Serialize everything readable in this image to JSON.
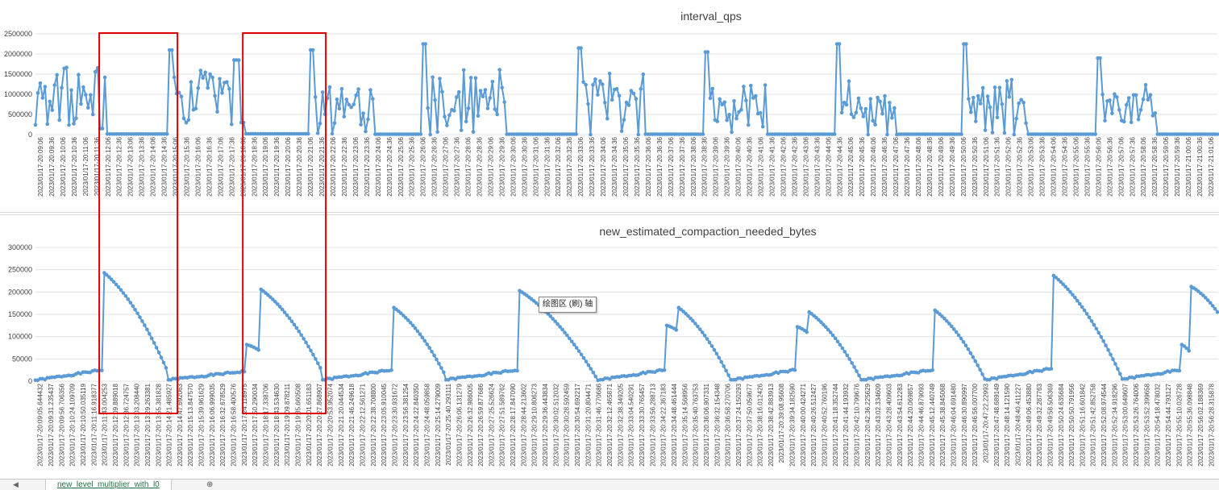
{
  "sheet_tabs": {
    "active": "new_level_multiplier_with_l0",
    "add_icon": "plus-circle-icon",
    "nav_icon": "chevron-left-icon"
  },
  "tooltip": "绘图区      (刷) 轴",
  "highlight_color": "#e00000",
  "series_color": "#5b9bd5",
  "highlights": [
    {
      "from_index": 28,
      "to_index": 58
    },
    {
      "from_index": 88,
      "to_index": 120
    }
  ],
  "chart_data": [
    {
      "type": "line",
      "title": "interval_qps",
      "ylim": [
        0,
        2500000
      ],
      "yticks": [
        0,
        500000,
        1000000,
        1500000,
        2000000,
        2500000
      ],
      "grid": true,
      "legend": "none",
      "xlabels": [
        "2023/01/17-20:09:06",
        "2023/01/17-20:09:36",
        "2023/01/17-20:10:06",
        "2023/01/17-20:10:36",
        "2023/01/17-20:11:06",
        "2023/01/17-20:11:36",
        "2023/01/17-20:12:06",
        "2023/01/17-20:12:36",
        "2023/01/17-20:13:06",
        "2023/01/17-20:13:36",
        "2023/01/17-20:14:06",
        "2023/01/17-20:14:36",
        "2023/01/17-20:15:06",
        "2023/01/17-20:15:36",
        "2023/01/17-20:16:06",
        "2023/01/17-20:16:36",
        "2023/01/17-20:17:06",
        "2023/01/17-20:17:36",
        "2023/01/17-20:18:06",
        "2023/01/17-20:18:36",
        "2023/01/17-20:19:06",
        "2023/01/17-20:19:36",
        "2023/01/17-20:20:06",
        "2023/01/17-20:20:36",
        "2023/01/17-20:21:06",
        "2023/01/17-20:21:36",
        "2023/01/17-20:22:06",
        "2023/01/17-20:22:36",
        "2023/01/17-20:23:06",
        "2023/01/17-20:23:36",
        "2023/01/17-20:24:06",
        "2023/01/17-20:24:36",
        "2023/01/17-20:25:06",
        "2023/01/17-20:25:36",
        "2023/01/17-20:26:06",
        "2023/01/17-20:26:36",
        "2023/01/17-20:27:06",
        "2023/01/17-20:27:36",
        "2023/01/17-20:28:06",
        "2023/01/17-20:28:36",
        "2023/01/17-20:29:06",
        "2023/01/17-20:29:36",
        "2023/01/17-20:30:06",
        "2023/01/17-20:30:36",
        "2023/01/17-20:31:06",
        "2023/01/17-20:31:36",
        "2023/01/17-20:32:06",
        "2023/01/17-20:32:36",
        "2023/01/17-20:33:06",
        "2023/01/17-20:33:36",
        "2023/01/17-20:34:06",
        "2023/01/17-20:34:36",
        "2023/01/17-20:35:06",
        "2023/01/17-20:35:36",
        "2023/01/17-20:36:06",
        "2023/01/17-20:36:36",
        "2023/01/17-20:37:06",
        "2023/01/17-20:37:36",
        "2023/01/17-20:38:06",
        "2023/01/17-20:38:36",
        "2023/01/17-20:39:06",
        "2023/01/17-20:39:36",
        "2023/01/17-20:40:06",
        "2023/01/17-20:40:36",
        "2023/01/17-20:41:06",
        "2023/01/17-20:41:36",
        "2023/01/17-20:42:06",
        "2023/01/17-20:42:36",
        "2023/01/17-20:43:06",
        "2023/01/17-20:43:36",
        "2023/01/17-20:44:06",
        "2023/01/17-20:44:36",
        "2023/01/17-20:45:06",
        "2023/01/17-20:45:36",
        "2023/01/17-20:46:06",
        "2023/01/17-20:46:36",
        "2023/01/17-20:47:06",
        "2023/01/17-20:47:36",
        "2023/01/17-20:48:06",
        "2023/01/17-20:48:36",
        "2023/01/17-20:49:06",
        "2023/01/17-20:49:36",
        "2023/01/17-20:50:06",
        "2023/01/17-20:50:36",
        "2023/01/17-20:51:06",
        "2023/01/17-20:51:36",
        "2023/01/17-20:52:06",
        "2023/01/17-20:52:36",
        "2023/01/17-20:53:06",
        "2023/01/17-20:53:36",
        "2023/01/17-20:54:06",
        "2023/01/17-20:54:36",
        "2023/01/17-20:55:06",
        "2023/01/17-20:55:36",
        "2023/01/17-20:56:06",
        "2023/01/17-20:56:36",
        "2023/01/17-20:57:06",
        "2023/01/17-20:57:36",
        "2023/01/17-20:58:06",
        "2023/01/17-20:58:36",
        "2023/01/17-20:59:06",
        "2023/01/17-20:59:36",
        "2023/01/17-21:00:06",
        "2023/01/17-21:00:36",
        "2023/01/17-21:01:06"
      ],
      "segments": [
        {
          "from": 0,
          "to": 26,
          "kind": "noisy",
          "level": 1700000,
          "spread": 1500000,
          "seed": 3
        },
        {
          "from": 27,
          "to": 28,
          "kind": "value",
          "value": 150000
        },
        {
          "from": 29,
          "to": 29,
          "kind": "value",
          "value": 1420000
        },
        {
          "from": 30,
          "to": 55,
          "kind": "idle",
          "value": 15000
        },
        {
          "from": 56,
          "to": 57,
          "kind": "value",
          "value": 2100000
        },
        {
          "from": 58,
          "to": 82,
          "kind": "noisy",
          "level": 1600000,
          "spread": 1500000,
          "seed": 7
        },
        {
          "from": 83,
          "to": 85,
          "kind": "value",
          "value": 1850000
        },
        {
          "from": 86,
          "to": 87,
          "kind": "value",
          "value": 300000
        },
        {
          "from": 88,
          "to": 114,
          "kind": "idle",
          "value": 20000
        },
        {
          "from": 115,
          "to": 116,
          "kind": "value",
          "value": 2100000
        },
        {
          "from": 117,
          "to": 141,
          "kind": "noisy",
          "level": 1300000,
          "spread": 1400000,
          "seed": 11
        },
        {
          "from": 142,
          "to": 161,
          "kind": "idle",
          "value": 10000
        },
        {
          "from": 162,
          "to": 163,
          "kind": "value",
          "value": 2250000
        },
        {
          "from": 164,
          "to": 196,
          "kind": "noisy",
          "level": 1500000,
          "spread": 1600000,
          "seed": 13
        },
        {
          "from": 197,
          "to": 226,
          "kind": "idle",
          "value": 10000
        },
        {
          "from": 227,
          "to": 228,
          "kind": "value",
          "value": 2150000
        },
        {
          "from": 229,
          "to": 254,
          "kind": "noisy",
          "level": 1400000,
          "spread": 1500000,
          "seed": 17
        },
        {
          "from": 255,
          "to": 279,
          "kind": "idle",
          "value": 10000
        },
        {
          "from": 280,
          "to": 281,
          "kind": "value",
          "value": 2050000
        },
        {
          "from": 282,
          "to": 305,
          "kind": "noisy",
          "level": 1400000,
          "spread": 1500000,
          "seed": 19
        },
        {
          "from": 306,
          "to": 334,
          "kind": "idle",
          "value": 10000
        },
        {
          "from": 335,
          "to": 336,
          "kind": "value",
          "value": 2250000
        },
        {
          "from": 337,
          "to": 360,
          "kind": "noisy",
          "level": 1250000,
          "spread": 1500000,
          "seed": 23
        },
        {
          "from": 361,
          "to": 387,
          "kind": "idle",
          "value": 10000
        },
        {
          "from": 388,
          "to": 389,
          "kind": "value",
          "value": 2250000
        },
        {
          "from": 390,
          "to": 414,
          "kind": "noisy",
          "level": 1300000,
          "spread": 1500000,
          "seed": 29
        },
        {
          "from": 415,
          "to": 443,
          "kind": "idle",
          "value": 10000
        },
        {
          "from": 444,
          "to": 445,
          "kind": "value",
          "value": 1900000
        },
        {
          "from": 446,
          "to": 468,
          "kind": "noisy",
          "level": 1200000,
          "spread": 1400000,
          "seed": 31
        },
        {
          "from": 469,
          "to": 494,
          "kind": "idle",
          "value": 10000
        }
      ]
    },
    {
      "type": "line",
      "title": "new_estimated_compaction_needed_bytes",
      "ylim": [
        0,
        300000
      ],
      "yticks": [
        0,
        50000,
        100000,
        150000,
        200000,
        250000,
        300000
      ],
      "grid": true,
      "legend": "none",
      "xlabels": [
        "2023/01/17-20:09:05.644432",
        "2023/01/17-20:09:31.235437",
        "2023/01/17-20:09:56.706356",
        "2023/01/17-20:10:24.109709",
        "2023/01/17-20:10:50.035119",
        "2023/01/17-20:11:16.918377",
        "2023/01/17-20:11:43.004253",
        "2023/01/17-20:12:09.889018",
        "2023/01/17-20:12:36.724757",
        "2023/01/17-20:13:03.208440",
        "2023/01/17-20:13:29.263381",
        "2023/01/17-20:13:55.381828",
        "2023/01/17-20:14:21.485927",
        "2023/01/17-20:14:47.692063",
        "2023/01/17-20:15:13.847570",
        "2023/01/17-20:15:39.961629",
        "2023/01/17-20:16:06.999035",
        "2023/01/17-20:16:32.678529",
        "2023/01/17-20:16:58.400576",
        "2023/01/17-20:17:24.118975",
        "2023/01/17-20:17:50.290034",
        "2023/01/17-20:18:17.338706",
        "2023/01/17-20:18:43.534630",
        "2023/01/17-20:19:09.878211",
        "2023/01/17-20:19:35.660508",
        "2023/01/17-20:20:01.651183",
        "2023/01/17-20:20:27.868907",
        "2023/01/17-20:20:53.952074",
        "2023/01/17-20:21:20.044534",
        "2023/01/17-20:21:46.249618",
        "2023/01/17-20:22:12.561271",
        "2023/01/17-20:22:38.708800",
        "2023/01/17-20:23:05.910045",
        "2023/01/17-20:23:30.931672",
        "2023/01/17-20:23:56.381254",
        "2023/01/17-20:24:22.840350",
        "2023/01/17-20:24:48.059858",
        "2023/01/17-20:25:14.279009",
        "2023/01/17-20:25:40.293111",
        "2023/01/17-20:26:06.131279",
        "2023/01/17-20:26:32.986005",
        "2023/01/17-20:26:59.877686",
        "2023/01/17-20:27:25.526624",
        "2023/01/17-20:27:51.589762",
        "2023/01/17-20:28:17.847090",
        "2023/01/17-20:28:44.213602",
        "2023/01/17-20:29:10.806273",
        "2023/01/17-20:29:36.443834",
        "2023/01/17-20:30:02.512032",
        "2023/01/17-20:30:28.592459",
        "2023/01/17-20:30:54.692217",
        "2023/01/17-20:31:20.804471",
        "2023/01/17-20:31:46.770686",
        "2023/01/17-20:32:12.465871",
        "2023/01/17-20:32:38.349205",
        "2023/01/17-20:33:04.540291",
        "2023/01/17-20:33:30.765457",
        "2023/01/17-20:33:56.288713",
        "2023/01/17-20:34:22.367183",
        "2023/01/17-20:34:48.461444",
        "2023/01/17-20:35:14.568956",
        "2023/01/17-20:35:40.763753",
        "2023/01/17-20:36:06.907331",
        "2023/01/17-20:36:32.154348",
        "2023/01/17-20:36:58.270706",
        "2023/01/17-20:37:24.150293",
        "2023/01/17-20:37:50.059677",
        "2023/01/17-20:38:16.012426",
        "2023/01/17-20:38:42.883913",
        "2023/01/17-20:39:08.95608",
        "2023/01/17-20:39:34.182590",
        "2023/01/17-20:40:00.424271",
        "2023/01/17-20:40:26.512427",
        "2023/01/17-20:40:52.760196",
        "2023/01/17-20:41:18.352744",
        "2023/01/17-20:41:44.193932",
        "2023/01/17-20:42:10.799676",
        "2023/01/17-20:42:36.225629",
        "2023/01/17-20:43:02.334609",
        "2023/01/17-20:43:28.409603",
        "2023/01/17-20:43:54.612283",
        "2023/01/17-20:44:20.069857",
        "2023/01/17-20:44:46.879093",
        "2023/01/17-20:45:12.440749",
        "2023/01/17-20:45:38.845068",
        "2023/01/17-20:46:04.691480",
        "2023/01/17-20:46:30.890997",
        "2023/01/17-20:46:56.007700",
        "2023/01/17-20:47:22.22993",
        "2023/01/17-20:47:48.689149",
        "2023/01/17-20:48:14.121590",
        "2023/01/17-20:48:40.411227",
        "2023/01/17-20:49:06.453880",
        "2023/01/17-20:49:32.287763",
        "2023/01/17-20:49:58.506369",
        "2023/01/17-20:50:24.635684",
        "2023/01/17-20:50:50.791956",
        "2023/01/17-20:51:16.601842",
        "2023/01/17-20:51:42.852758",
        "2023/01/17-20:52:08.974544",
        "2023/01/17-20:52:34.918296",
        "2023/01/17-20:53:00.649607",
        "2023/01/17-20:53:26.764006",
        "2023/01/17-20:53:52.399658",
        "2023/01/17-20:54:18.478032",
        "2023/01/17-20:54:44.793127",
        "2023/01/17-20:55:10.026728",
        "2023/01/17-20:55:36.098848",
        "2023/01/17-20:56:02.188369",
        "2023/01/17-20:56:28.315878"
      ],
      "segments": [
        {
          "from": 0,
          "to": 28,
          "kind": "ramp",
          "start": 2000,
          "end": 25000
        },
        {
          "from": 29,
          "to": 55,
          "kind": "decay",
          "start": 243000,
          "end": 30000
        },
        {
          "from": 56,
          "to": 88,
          "kind": "ramp",
          "start": 3000,
          "end": 22000
        },
        {
          "from": 89,
          "to": 94,
          "kind": "decay",
          "start": 82000,
          "end": 70000
        },
        {
          "from": 95,
          "to": 120,
          "kind": "decay",
          "start": 206000,
          "end": 30000
        },
        {
          "from": 121,
          "to": 150,
          "kind": "ramp",
          "start": 3000,
          "end": 25000
        },
        {
          "from": 151,
          "to": 172,
          "kind": "decay",
          "start": 165000,
          "end": 20000
        },
        {
          "from": 173,
          "to": 203,
          "kind": "ramp",
          "start": 3000,
          "end": 25000
        },
        {
          "from": 204,
          "to": 237,
          "kind": "decay",
          "start": 203000,
          "end": 2000
        },
        {
          "from": 238,
          "to": 265,
          "kind": "ramp",
          "start": 3000,
          "end": 25000
        },
        {
          "from": 266,
          "to": 270,
          "kind": "decay",
          "start": 125000,
          "end": 115000
        },
        {
          "from": 271,
          "to": 293,
          "kind": "decay",
          "start": 165000,
          "end": 3000
        },
        {
          "from": 294,
          "to": 320,
          "kind": "ramp",
          "start": 3000,
          "end": 25000
        },
        {
          "from": 321,
          "to": 325,
          "kind": "decay",
          "start": 122000,
          "end": 110000
        },
        {
          "from": 326,
          "to": 348,
          "kind": "decay",
          "start": 155000,
          "end": 3000
        },
        {
          "from": 349,
          "to": 378,
          "kind": "ramp",
          "start": 3000,
          "end": 25000
        },
        {
          "from": 379,
          "to": 400,
          "kind": "decay",
          "start": 159000,
          "end": 5000
        },
        {
          "from": 401,
          "to": 428,
          "kind": "ramp",
          "start": 3000,
          "end": 28000
        },
        {
          "from": 429,
          "to": 458,
          "kind": "decay",
          "start": 237000,
          "end": 5000
        },
        {
          "from": 459,
          "to": 482,
          "kind": "ramp",
          "start": 5000,
          "end": 25000
        },
        {
          "from": 483,
          "to": 486,
          "kind": "decay",
          "start": 82000,
          "end": 68000
        },
        {
          "from": 487,
          "to": 498,
          "kind": "decay",
          "start": 212000,
          "end": 155000
        }
      ]
    }
  ]
}
